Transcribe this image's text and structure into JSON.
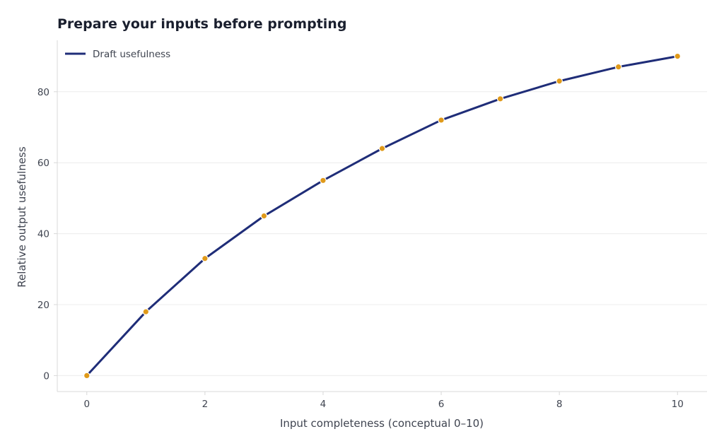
{
  "chart_data": {
    "type": "line",
    "title": "Prepare your inputs before prompting",
    "xlabel": "Input completeness (conceptual 0–10)",
    "ylabel": "Relative output usefulness",
    "xlim": [
      -0.5,
      10.5
    ],
    "ylim": [
      -4.5,
      94.5
    ],
    "xticks": [
      0,
      2,
      4,
      6,
      8,
      10
    ],
    "yticks": [
      0,
      20,
      40,
      60,
      80
    ],
    "grid": "horizontal",
    "legend_position": "top-left",
    "series": [
      {
        "name": "Draft usefulness",
        "line_color": "#1f2d78",
        "marker_color": "#e09a1a",
        "x": [
          0,
          1,
          2,
          3,
          4,
          5,
          6,
          7,
          8,
          9,
          10
        ],
        "y": [
          0,
          18,
          33,
          45,
          55,
          64,
          72,
          78,
          83,
          87,
          90
        ]
      }
    ]
  }
}
